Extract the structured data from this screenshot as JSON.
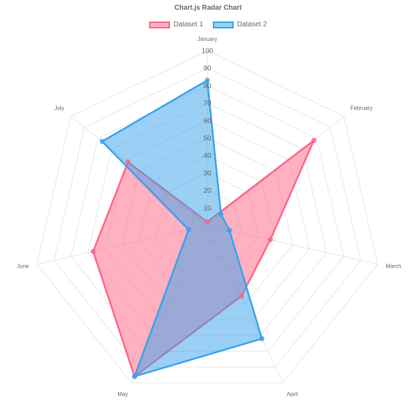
{
  "chart_data": {
    "type": "radar",
    "title": "Chart.js Radar Chart",
    "categories": [
      "January",
      "February",
      "March",
      "April",
      "May",
      "June",
      "July"
    ],
    "r_axis": {
      "min": 0,
      "max": 100,
      "ticks": [
        "10",
        "20",
        "30",
        "40",
        "50",
        "60",
        "70",
        "80",
        "90",
        "100"
      ]
    },
    "series": [
      {
        "name": "Dataset 1",
        "values": [
          2,
          78,
          37,
          45,
          96,
          67,
          58
        ],
        "border_color": "#ff6384",
        "fill_color": "rgba(255, 99, 132, 0.5)"
      },
      {
        "name": "Dataset 2",
        "values": [
          83,
          10,
          13,
          72,
          96,
          11,
          77
        ],
        "border_color": "#36a2eb",
        "fill_color": "rgba(54, 162, 235, 0.5)"
      }
    ],
    "legend_position": "top",
    "grid": true
  }
}
